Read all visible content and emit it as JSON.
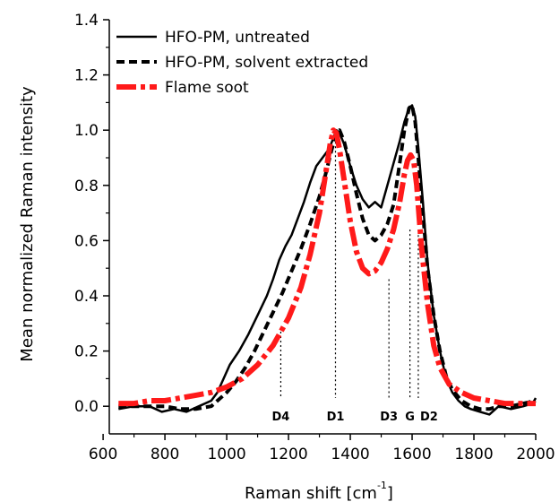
{
  "chart_data": {
    "type": "line",
    "xlabel": "Raman shift [cm",
    "xlabel_sup": "-1",
    "xlabel_close": "]",
    "ylabel": "Mean normalized Raman intensity",
    "xlim": [
      620,
      2000
    ],
    "ylim": [
      -0.1,
      1.4
    ],
    "xticks": [
      600,
      800,
      1000,
      1200,
      1400,
      1600,
      1800,
      2000
    ],
    "yticks": [
      0.0,
      0.2,
      0.4,
      0.6,
      0.8,
      1.0,
      1.2,
      1.4
    ],
    "grid": false,
    "legend_position": "top-left",
    "series": [
      {
        "name": "HFO-PM, untreated",
        "color": "#000000",
        "style": "solid",
        "x": [
          650,
          700,
          750,
          790,
          830,
          870,
          910,
          950,
          970,
          990,
          1010,
          1040,
          1070,
          1100,
          1130,
          1150,
          1170,
          1190,
          1210,
          1230,
          1250,
          1270,
          1290,
          1310,
          1330,
          1345,
          1355,
          1365,
          1380,
          1400,
          1420,
          1440,
          1460,
          1480,
          1500,
          1520,
          1540,
          1560,
          1575,
          1590,
          1600,
          1610,
          1620,
          1635,
          1650,
          1670,
          1690,
          1710,
          1730,
          1750,
          1770,
          1790,
          1820,
          1850,
          1880,
          1920,
          1960,
          1990,
          2000
        ],
        "y": [
          -0.01,
          0.0,
          0.0,
          -0.02,
          -0.01,
          -0.02,
          0.0,
          0.02,
          0.05,
          0.1,
          0.15,
          0.2,
          0.26,
          0.33,
          0.4,
          0.46,
          0.53,
          0.58,
          0.62,
          0.68,
          0.74,
          0.81,
          0.87,
          0.9,
          0.93,
          0.97,
          1.0,
          0.99,
          0.95,
          0.87,
          0.8,
          0.75,
          0.72,
          0.74,
          0.72,
          0.8,
          0.88,
          0.96,
          1.03,
          1.08,
          1.09,
          1.05,
          0.94,
          0.74,
          0.52,
          0.33,
          0.2,
          0.1,
          0.05,
          0.02,
          0.0,
          -0.01,
          -0.02,
          -0.03,
          0.0,
          -0.01,
          0.0,
          0.01,
          0.03
        ]
      },
      {
        "name": "HFO-PM, solvent extracted",
        "color": "#000000",
        "style": "dashed",
        "x": [
          650,
          700,
          750,
          800,
          850,
          900,
          950,
          1000,
          1030,
          1060,
          1090,
          1120,
          1150,
          1180,
          1210,
          1240,
          1270,
          1300,
          1320,
          1340,
          1355,
          1365,
          1380,
          1400,
          1420,
          1440,
          1460,
          1480,
          1500,
          1520,
          1540,
          1560,
          1575,
          1590,
          1600,
          1610,
          1620,
          1635,
          1650,
          1670,
          1690,
          1710,
          1730,
          1760,
          1790,
          1820,
          1850,
          1880,
          1920,
          1960,
          2000
        ],
        "y": [
          0.0,
          0.0,
          0.0,
          0.0,
          -0.01,
          -0.01,
          0.0,
          0.05,
          0.09,
          0.14,
          0.2,
          0.27,
          0.34,
          0.41,
          0.49,
          0.57,
          0.66,
          0.76,
          0.84,
          0.93,
          0.99,
          1.0,
          0.96,
          0.87,
          0.77,
          0.68,
          0.62,
          0.6,
          0.62,
          0.66,
          0.73,
          0.88,
          1.0,
          1.08,
          1.09,
          1.03,
          0.9,
          0.7,
          0.5,
          0.33,
          0.2,
          0.11,
          0.06,
          0.02,
          0.0,
          -0.01,
          -0.01,
          0.0,
          0.0,
          0.01,
          0.02
        ]
      },
      {
        "name": "Flame soot",
        "color": "#ff1a1a",
        "style": "dashdot",
        "x": [
          650,
          700,
          750,
          800,
          850,
          900,
          950,
          1000,
          1050,
          1100,
          1150,
          1200,
          1240,
          1270,
          1300,
          1320,
          1335,
          1345,
          1355,
          1365,
          1380,
          1400,
          1420,
          1440,
          1460,
          1480,
          1500,
          1520,
          1540,
          1560,
          1575,
          1585,
          1595,
          1605,
          1615,
          1630,
          1650,
          1670,
          1690,
          1720,
          1760,
          1800,
          1850,
          1900,
          1950,
          2000
        ],
        "y": [
          0.01,
          0.01,
          0.02,
          0.02,
          0.03,
          0.04,
          0.05,
          0.07,
          0.1,
          0.15,
          0.22,
          0.32,
          0.43,
          0.55,
          0.7,
          0.84,
          0.95,
          1.0,
          0.99,
          0.93,
          0.82,
          0.67,
          0.56,
          0.5,
          0.48,
          0.49,
          0.52,
          0.57,
          0.64,
          0.74,
          0.84,
          0.89,
          0.91,
          0.89,
          0.8,
          0.58,
          0.37,
          0.22,
          0.14,
          0.08,
          0.05,
          0.03,
          0.02,
          0.01,
          0.01,
          0.01
        ]
      }
    ],
    "bands": [
      {
        "label": "D4",
        "x": 1175,
        "y_top": 0.27,
        "label_offset": 0
      },
      {
        "label": "D1",
        "x": 1352,
        "y_top": 0.99,
        "label_offset": 0
      },
      {
        "label": "D3",
        "x": 1525,
        "y_top": 0.46,
        "label_offset": 0
      },
      {
        "label": "G",
        "x": 1593,
        "y_top": 0.64,
        "label_offset": 0
      },
      {
        "label": "D2",
        "x": 1620,
        "y_top": 0.62,
        "label_offset": 12
      }
    ]
  }
}
